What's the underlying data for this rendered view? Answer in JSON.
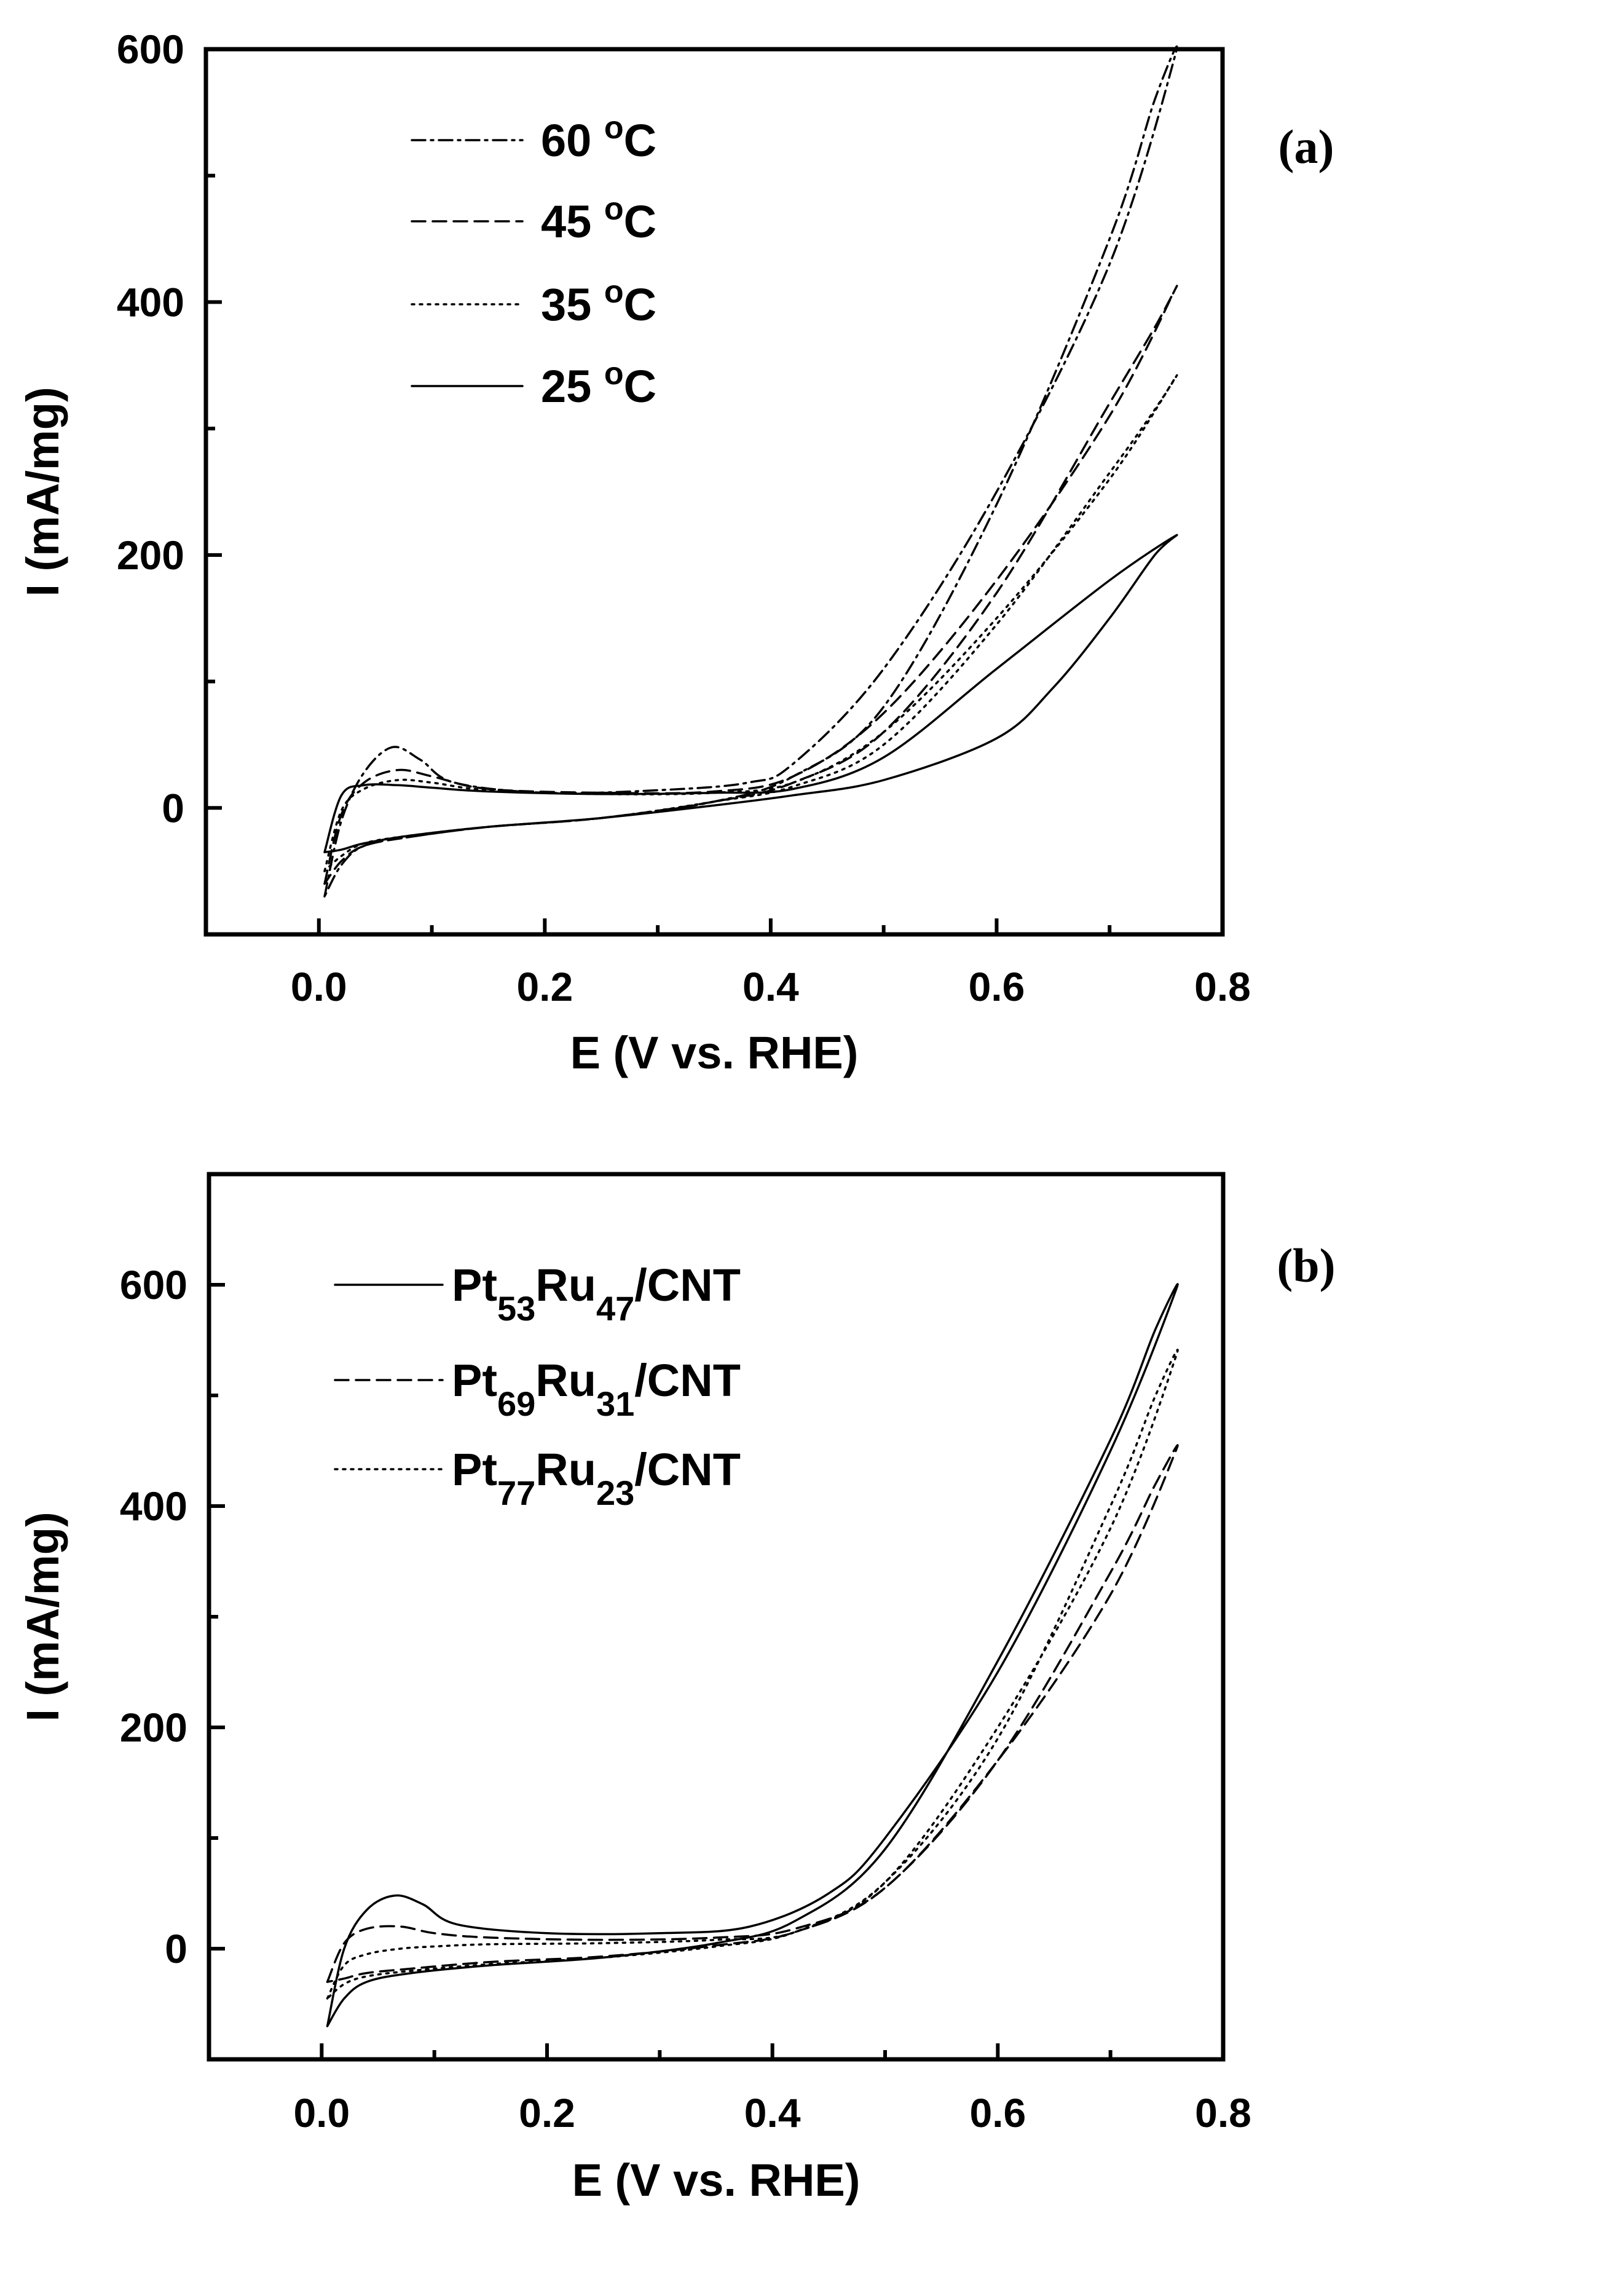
{
  "chart_data": [
    {
      "type": "line",
      "panel_label": "(a)",
      "xlabel": "E (V vs. RHE)",
      "ylabel": "I (mA/mg)",
      "xlim": [
        -0.1,
        0.8
      ],
      "ylim": [
        -100,
        600
      ],
      "x_ticks": [
        0.0,
        0.2,
        0.4,
        0.6,
        0.8
      ],
      "x_tick_labels": [
        "0.0",
        "0.2",
        "0.4",
        "0.6",
        "0.8"
      ],
      "y_ticks": [
        0,
        200,
        400,
        600
      ],
      "y_tick_labels": [
        "0",
        "200",
        "400",
        "600"
      ],
      "legend_position": "top-left",
      "series": [
        {
          "name": "60 oC",
          "label_main": "60 ",
          "label_sup": "o",
          "label_tail": "C",
          "dash": "dashdot",
          "x": [
            0.005,
            0.02,
            0.04,
            0.065,
            0.09,
            0.12,
            0.2,
            0.3,
            0.38,
            0.42,
            0.5,
            0.6,
            0.7,
            0.758,
            0.74,
            0.7,
            0.6,
            0.5,
            0.42,
            0.35,
            0.25,
            0.15,
            0.08,
            0.04,
            0.02,
            0.005
          ],
          "y": [
            -70,
            -10,
            28,
            48,
            38,
            20,
            12,
            14,
            20,
            35,
            110,
            250,
            430,
            595,
            560,
            450,
            240,
            80,
            25,
            5,
            -8,
            -15,
            -23,
            -30,
            -45,
            -70
          ]
        },
        {
          "name": "45 oC",
          "label_main": "45 ",
          "label_sup": "o",
          "label_tail": "C",
          "dash": "dash",
          "x": [
            0.005,
            0.02,
            0.04,
            0.07,
            0.1,
            0.15,
            0.25,
            0.35,
            0.42,
            0.5,
            0.6,
            0.7,
            0.758,
            0.74,
            0.7,
            0.6,
            0.5,
            0.42,
            0.35,
            0.25,
            0.15,
            0.08,
            0.04,
            0.02,
            0.005
          ],
          "y": [
            -60,
            -5,
            20,
            30,
            25,
            15,
            12,
            13,
            25,
            75,
            180,
            310,
            410,
            380,
            320,
            170,
            60,
            20,
            5,
            -8,
            -15,
            -23,
            -30,
            -42,
            -60
          ]
        },
        {
          "name": "35 oC",
          "label_main": "35 ",
          "label_sup": "o",
          "label_tail": "C",
          "dash": "dot",
          "x": [
            0.005,
            0.02,
            0.04,
            0.07,
            0.1,
            0.15,
            0.25,
            0.35,
            0.42,
            0.5,
            0.6,
            0.7,
            0.758,
            0.74,
            0.7,
            0.6,
            0.5,
            0.42,
            0.35,
            0.25,
            0.15,
            0.08,
            0.04,
            0.02,
            0.005
          ],
          "y": [
            -50,
            -2,
            15,
            22,
            20,
            14,
            11,
            12,
            20,
            60,
            150,
            260,
            340,
            315,
            265,
            145,
            50,
            17,
            5,
            -8,
            -15,
            -22,
            -28,
            -38,
            -50
          ]
        },
        {
          "name": "25 oC",
          "label_main": "25 ",
          "label_sup": "o",
          "label_tail": "C",
          "dash": "solid",
          "x": [
            0.005,
            0.02,
            0.04,
            0.07,
            0.1,
            0.15,
            0.25,
            0.35,
            0.42,
            0.5,
            0.6,
            0.7,
            0.758,
            0.74,
            0.7,
            0.65,
            0.6,
            0.5,
            0.42,
            0.35,
            0.25,
            0.15,
            0.08,
            0.04,
            0.02,
            0.005
          ],
          "y": [
            -35,
            10,
            18,
            18,
            16,
            13,
            11,
            12,
            15,
            40,
            110,
            180,
            215,
            200,
            150,
            95,
            55,
            22,
            10,
            2,
            -8,
            -15,
            -22,
            -28,
            -33,
            -35
          ]
        }
      ]
    },
    {
      "type": "line",
      "panel_label": "(b)",
      "xlabel": "E (V vs. RHE)",
      "ylabel": "I (mA/mg)",
      "xlim": [
        -0.1,
        0.8
      ],
      "ylim": [
        -100,
        700
      ],
      "x_ticks": [
        0.0,
        0.2,
        0.4,
        0.6,
        0.8
      ],
      "x_tick_labels": [
        "0.0",
        "0.2",
        "0.4",
        "0.6",
        "0.8"
      ],
      "y_ticks": [
        0,
        200,
        400,
        600
      ],
      "y_tick_labels": [
        "0",
        "200",
        "400",
        "600"
      ],
      "legend_position": "top-left",
      "series": [
        {
          "name": "Pt53Ru47/CNT",
          "label_main": "Pt",
          "label_sub1": "53",
          "label_mid": "Ru",
          "label_sub2": "47",
          "label_tail": "/CNT",
          "dash": "solid",
          "x": [
            0.005,
            0.02,
            0.04,
            0.065,
            0.09,
            0.12,
            0.2,
            0.3,
            0.38,
            0.45,
            0.5,
            0.6,
            0.7,
            0.758,
            0.74,
            0.7,
            0.6,
            0.5,
            0.42,
            0.35,
            0.25,
            0.15,
            0.08,
            0.04,
            0.02,
            0.005
          ],
          "y": [
            -70,
            0,
            35,
            48,
            40,
            22,
            14,
            14,
            20,
            50,
            100,
            250,
            450,
            595,
            560,
            460,
            260,
            90,
            25,
            5,
            -8,
            -15,
            -22,
            -30,
            -45,
            -70
          ]
        },
        {
          "name": "Pt69Ru31/CNT",
          "label_main": "Pt",
          "label_sub1": "69",
          "label_mid": "Ru",
          "label_sub2": "31",
          "label_tail": "/CNT",
          "dash": "dash",
          "x": [
            0.005,
            0.02,
            0.04,
            0.07,
            0.1,
            0.15,
            0.25,
            0.35,
            0.42,
            0.5,
            0.6,
            0.7,
            0.758,
            0.74,
            0.7,
            0.6,
            0.5,
            0.42,
            0.35,
            0.25,
            0.15,
            0.08,
            0.04,
            0.02,
            0.005
          ],
          "y": [
            -30,
            5,
            18,
            20,
            14,
            10,
            8,
            10,
            18,
            55,
            170,
            320,
            450,
            420,
            340,
            170,
            55,
            15,
            3,
            -7,
            -12,
            -18,
            -22,
            -27,
            -30
          ]
        },
        {
          "name": "Pt77Ru23/CNT",
          "label_main": "Pt",
          "label_sub1": "77",
          "label_mid": "Ru",
          "label_sub2": "23",
          "label_tail": "/CNT",
          "dash": "dot",
          "x": [
            0.005,
            0.02,
            0.04,
            0.07,
            0.1,
            0.15,
            0.25,
            0.35,
            0.42,
            0.5,
            0.6,
            0.7,
            0.758,
            0.74,
            0.7,
            0.6,
            0.5,
            0.42,
            0.35,
            0.25,
            0.15,
            0.08,
            0.04,
            0.02,
            0.005
          ],
          "y": [
            -45,
            -15,
            -5,
            0,
            2,
            4,
            5,
            8,
            15,
            60,
            200,
            380,
            535,
            500,
            400,
            190,
            60,
            15,
            2,
            -8,
            -14,
            -20,
            -25,
            -32,
            -45
          ]
        }
      ]
    }
  ]
}
